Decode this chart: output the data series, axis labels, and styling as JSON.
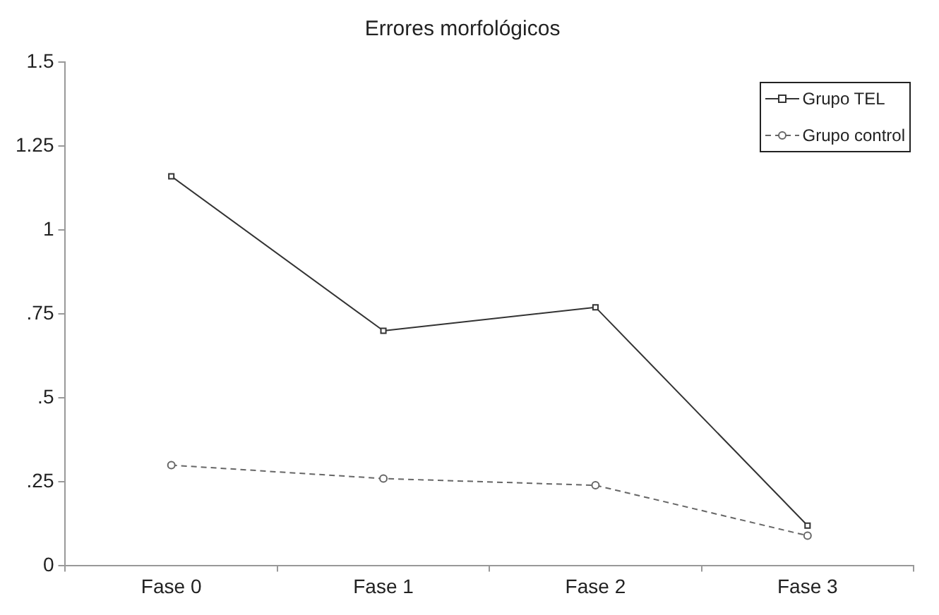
{
  "chart_data": {
    "type": "line",
    "title": "Errores morfológicos",
    "categories": [
      "Fase 0",
      "Fase 1",
      "Fase 2",
      "Fase 3"
    ],
    "series": [
      {
        "name": "Grupo TEL",
        "color": "#333333",
        "values": [
          1.16,
          0.7,
          0.77,
          0.12
        ],
        "marker": "square",
        "line_style": "solid"
      },
      {
        "name": "Grupo control",
        "color": "#666666",
        "values": [
          0.3,
          0.26,
          0.24,
          0.09
        ],
        "marker": "circle",
        "line_style": "dashed"
      }
    ],
    "ylim": [
      0,
      1.5
    ],
    "yticks": [
      0,
      {
        "value": 0.25,
        "label": ".25"
      },
      {
        "value": 0.5,
        "label": ".5"
      },
      {
        "value": 0.75,
        "label": ".75"
      },
      1,
      1.25,
      1.5
    ],
    "grid": false,
    "legend": "top right"
  }
}
